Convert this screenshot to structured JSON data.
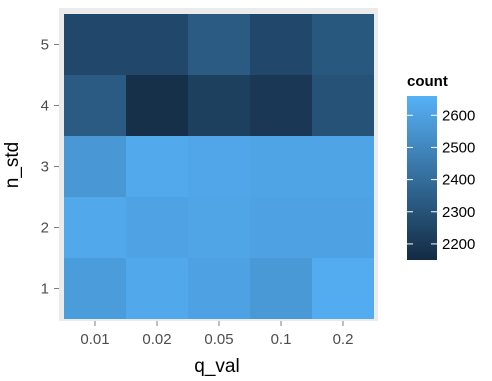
{
  "chart_data": {
    "type": "heatmap",
    "title": "",
    "xlabel": "q_val",
    "ylabel": "n_std",
    "x": [
      "0.01",
      "0.02",
      "0.05",
      "0.1",
      "0.2"
    ],
    "y": [
      "1",
      "2",
      "3",
      "4",
      "5"
    ],
    "values": [
      [
        2580,
        2625,
        2600,
        2570,
        2640
      ],
      [
        2625,
        2605,
        2615,
        2600,
        2600
      ],
      [
        2560,
        2630,
        2620,
        2610,
        2610
      ],
      [
        2330,
        2170,
        2230,
        2200,
        2300
      ],
      [
        2260,
        2260,
        2330,
        2260,
        2320
      ]
    ],
    "legend": {
      "title": "count",
      "position": "right",
      "ticks": [
        2200,
        2300,
        2400,
        2500,
        2600
      ],
      "range": [
        2150,
        2660
      ],
      "color_low": "#132B43",
      "color_high": "#56B1F7"
    },
    "panel_background": "#EBEBEB",
    "grid": true
  }
}
